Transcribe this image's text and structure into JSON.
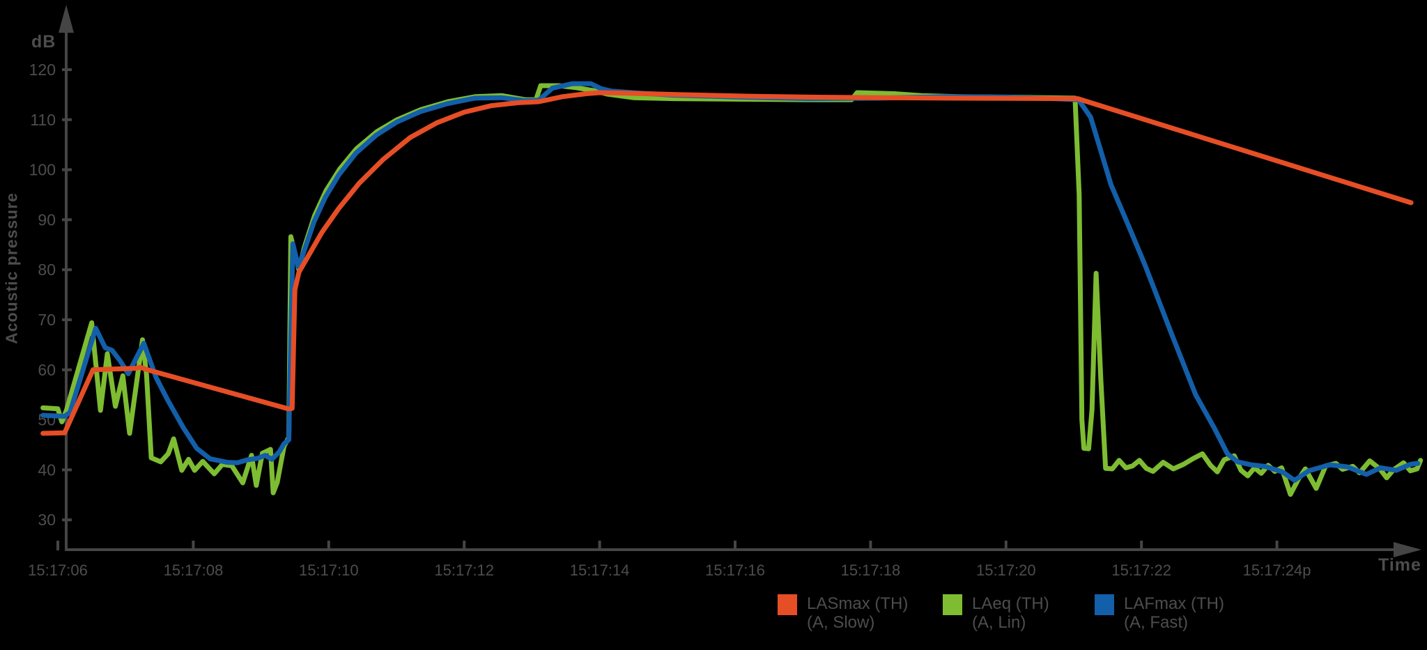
{
  "chart_data": {
    "type": "line",
    "title": "",
    "xlabel": "Time",
    "ylabel": "Acoustic pressure",
    "y_unit_label": "dB",
    "ylim": [
      30,
      120
    ],
    "y_ticks": [
      120,
      110,
      100,
      90,
      80,
      70,
      60,
      50,
      40,
      30
    ],
    "x_ticks": [
      {
        "t": 6,
        "label": "15:17:06"
      },
      {
        "t": 8,
        "label": "15:17:08"
      },
      {
        "t": 10,
        "label": "15:17:10"
      },
      {
        "t": 12,
        "label": "15:17:12"
      },
      {
        "t": 14,
        "label": "15:17:14"
      },
      {
        "t": 16,
        "label": "15:17:16"
      },
      {
        "t": 18,
        "label": "15:17:18"
      },
      {
        "t": 20,
        "label": "15:17:20"
      },
      {
        "t": 22,
        "label": "15:17:22"
      },
      {
        "t": 24,
        "label": "15:17:24p"
      }
    ],
    "x_range_seconds": [
      5.78,
      26.12
    ],
    "grid": false,
    "legend_position": "bottom",
    "series": [
      {
        "name": "LAeq (TH)",
        "sublabel": "(A, Lin)",
        "color": "#7EBC32",
        "points": [
          [
            5.78,
            52.4
          ],
          [
            6.0,
            52.2
          ],
          [
            6.06,
            49.6
          ],
          [
            6.13,
            52.0
          ],
          [
            6.5,
            69.4
          ],
          [
            6.63,
            51.9
          ],
          [
            6.73,
            63.2
          ],
          [
            6.85,
            52.7
          ],
          [
            6.96,
            58.8
          ],
          [
            7.06,
            47.3
          ],
          [
            7.25,
            66.0
          ],
          [
            7.31,
            59.0
          ],
          [
            7.38,
            42.4
          ],
          [
            7.52,
            41.6
          ],
          [
            7.63,
            43.2
          ],
          [
            7.71,
            46.2
          ],
          [
            7.83,
            39.9
          ],
          [
            7.93,
            42.1
          ],
          [
            8.02,
            39.9
          ],
          [
            8.14,
            41.7
          ],
          [
            8.31,
            39.2
          ],
          [
            8.43,
            41.1
          ],
          [
            8.57,
            40.8
          ],
          [
            8.73,
            37.4
          ],
          [
            8.86,
            42.9
          ],
          [
            8.93,
            36.9
          ],
          [
            9.02,
            43.3
          ],
          [
            9.14,
            44.1
          ],
          [
            9.18,
            35.4
          ],
          [
            9.24,
            37.5
          ],
          [
            9.34,
            44.7
          ],
          [
            9.41,
            46.5
          ],
          [
            9.44,
            86.6
          ],
          [
            9.56,
            80.0
          ],
          [
            9.64,
            84.5
          ],
          [
            9.79,
            90.8
          ],
          [
            9.96,
            95.8
          ],
          [
            10.16,
            100.1
          ],
          [
            10.41,
            104.2
          ],
          [
            10.71,
            107.6
          ],
          [
            11.01,
            110.0
          ],
          [
            11.36,
            112.0
          ],
          [
            11.76,
            113.6
          ],
          [
            12.16,
            114.6
          ],
          [
            12.56,
            114.8
          ],
          [
            12.9,
            114.0
          ],
          [
            13.06,
            114.0
          ],
          [
            13.13,
            116.8
          ],
          [
            13.4,
            116.8
          ],
          [
            13.65,
            116.4
          ],
          [
            13.92,
            115.8
          ],
          [
            14.12,
            115.1
          ],
          [
            14.5,
            114.4
          ],
          [
            15.1,
            114.2
          ],
          [
            16.1,
            114.1
          ],
          [
            17.1,
            114.0
          ],
          [
            17.72,
            114.0
          ],
          [
            17.8,
            115.4
          ],
          [
            18.35,
            115.2
          ],
          [
            18.75,
            114.8
          ],
          [
            19.3,
            114.6
          ],
          [
            20.1,
            114.5
          ],
          [
            21.02,
            114.3
          ],
          [
            21.08,
            95.0
          ],
          [
            21.12,
            50.0
          ],
          [
            21.15,
            44.3
          ],
          [
            21.22,
            44.2
          ],
          [
            21.27,
            52.0
          ],
          [
            21.33,
            79.3
          ],
          [
            21.4,
            58.0
          ],
          [
            21.47,
            40.3
          ],
          [
            21.57,
            40.2
          ],
          [
            21.67,
            41.9
          ],
          [
            21.77,
            40.4
          ],
          [
            21.87,
            40.8
          ],
          [
            21.97,
            41.9
          ],
          [
            22.07,
            40.3
          ],
          [
            22.17,
            39.7
          ],
          [
            22.32,
            41.5
          ],
          [
            22.47,
            40.2
          ],
          [
            22.62,
            41.1
          ],
          [
            22.77,
            42.3
          ],
          [
            22.9,
            43.2
          ],
          [
            23.02,
            40.9
          ],
          [
            23.12,
            39.6
          ],
          [
            23.22,
            42.0
          ],
          [
            23.37,
            42.8
          ],
          [
            23.47,
            39.9
          ],
          [
            23.57,
            38.8
          ],
          [
            23.67,
            40.4
          ],
          [
            23.77,
            39.3
          ],
          [
            23.87,
            40.9
          ],
          [
            23.97,
            39.7
          ],
          [
            24.07,
            40.4
          ],
          [
            24.2,
            35.1
          ],
          [
            24.32,
            38.2
          ],
          [
            24.42,
            40.2
          ],
          [
            24.58,
            36.3
          ],
          [
            24.72,
            40.8
          ],
          [
            24.87,
            41.3
          ],
          [
            24.97,
            40.1
          ],
          [
            25.12,
            40.7
          ],
          [
            25.22,
            39.4
          ],
          [
            25.37,
            41.8
          ],
          [
            25.52,
            40.2
          ],
          [
            25.62,
            38.4
          ],
          [
            25.72,
            40.0
          ],
          [
            25.87,
            41.4
          ],
          [
            25.97,
            39.8
          ],
          [
            26.07,
            40.2
          ],
          [
            26.12,
            41.9
          ]
        ]
      },
      {
        "name": "LAFmax (TH)",
        "sublabel": "(A, Fast)",
        "color": "#135FA9",
        "points": [
          [
            5.78,
            50.9
          ],
          [
            6.1,
            50.7
          ],
          [
            6.18,
            51.5
          ],
          [
            6.56,
            68.3
          ],
          [
            6.7,
            64.4
          ],
          [
            6.8,
            63.9
          ],
          [
            6.92,
            61.8
          ],
          [
            7.04,
            59.2
          ],
          [
            7.27,
            65.3
          ],
          [
            7.45,
            58.5
          ],
          [
            7.62,
            54.0
          ],
          [
            7.85,
            48.5
          ],
          [
            8.05,
            44.3
          ],
          [
            8.25,
            42.2
          ],
          [
            8.5,
            41.5
          ],
          [
            8.65,
            41.4
          ],
          [
            8.8,
            42.0
          ],
          [
            8.95,
            42.3
          ],
          [
            9.06,
            42.9
          ],
          [
            9.16,
            42.1
          ],
          [
            9.27,
            43.6
          ],
          [
            9.34,
            45.2
          ],
          [
            9.41,
            46.0
          ],
          [
            9.43,
            60.0
          ],
          [
            9.47,
            85.2
          ],
          [
            9.55,
            80.6
          ],
          [
            9.63,
            83.5
          ],
          [
            9.78,
            89.5
          ],
          [
            9.95,
            94.5
          ],
          [
            10.15,
            99.0
          ],
          [
            10.4,
            103.3
          ],
          [
            10.7,
            106.9
          ],
          [
            11.0,
            109.5
          ],
          [
            11.35,
            111.6
          ],
          [
            11.75,
            113.2
          ],
          [
            12.15,
            114.3
          ],
          [
            12.55,
            114.4
          ],
          [
            12.9,
            113.8
          ],
          [
            13.1,
            113.9
          ],
          [
            13.3,
            116.3
          ],
          [
            13.6,
            117.2
          ],
          [
            13.87,
            117.2
          ],
          [
            14.02,
            116.2
          ],
          [
            14.18,
            115.7
          ],
          [
            14.6,
            115.3
          ],
          [
            15.1,
            114.9
          ],
          [
            16.1,
            114.5
          ],
          [
            17.1,
            114.2
          ],
          [
            18.1,
            114.3
          ],
          [
            19.1,
            114.6
          ],
          [
            20.0,
            114.5
          ],
          [
            20.7,
            114.2
          ],
          [
            21.07,
            114.0
          ],
          [
            21.25,
            110.5
          ],
          [
            21.55,
            97.0
          ],
          [
            21.85,
            87.5
          ],
          [
            22.05,
            81.0
          ],
          [
            22.45,
            67.0
          ],
          [
            22.8,
            55.0
          ],
          [
            23.07,
            48.5
          ],
          [
            23.27,
            43.2
          ],
          [
            23.42,
            41.6
          ],
          [
            23.62,
            41.0
          ],
          [
            23.82,
            40.7
          ],
          [
            24.08,
            39.6
          ],
          [
            24.26,
            37.9
          ],
          [
            24.47,
            39.8
          ],
          [
            24.78,
            41.0
          ],
          [
            25.04,
            40.6
          ],
          [
            25.32,
            39.1
          ],
          [
            25.53,
            40.4
          ],
          [
            25.76,
            39.9
          ],
          [
            25.97,
            41.1
          ],
          [
            26.08,
            41.3
          ]
        ]
      },
      {
        "name": "LASmax (TH)",
        "sublabel": "(A, Slow)",
        "color": "#E64E26",
        "points": [
          [
            5.78,
            47.3
          ],
          [
            6.1,
            47.4
          ],
          [
            6.52,
            60.0
          ],
          [
            7.15,
            60.3
          ],
          [
            7.22,
            60.5
          ],
          [
            7.3,
            60.1
          ],
          [
            9.4,
            52.2
          ],
          [
            9.46,
            52.3
          ],
          [
            9.5,
            76.0
          ],
          [
            9.56,
            79.5
          ],
          [
            9.7,
            82.8
          ],
          [
            9.9,
            87.5
          ],
          [
            10.15,
            92.3
          ],
          [
            10.45,
            97.3
          ],
          [
            10.8,
            102.0
          ],
          [
            11.2,
            106.4
          ],
          [
            11.6,
            109.4
          ],
          [
            12.0,
            111.5
          ],
          [
            12.4,
            112.8
          ],
          [
            12.8,
            113.4
          ],
          [
            13.1,
            113.6
          ],
          [
            13.45,
            114.6
          ],
          [
            13.8,
            115.2
          ],
          [
            14.0,
            115.4
          ],
          [
            14.4,
            115.3
          ],
          [
            15.2,
            115.0
          ],
          [
            16.2,
            114.7
          ],
          [
            17.2,
            114.5
          ],
          [
            18.2,
            114.4
          ],
          [
            19.2,
            114.3
          ],
          [
            20.2,
            114.25
          ],
          [
            21.06,
            114.2
          ],
          [
            25.98,
            93.4
          ]
        ]
      }
    ],
    "legend_order": [
      2,
      0,
      1
    ]
  }
}
